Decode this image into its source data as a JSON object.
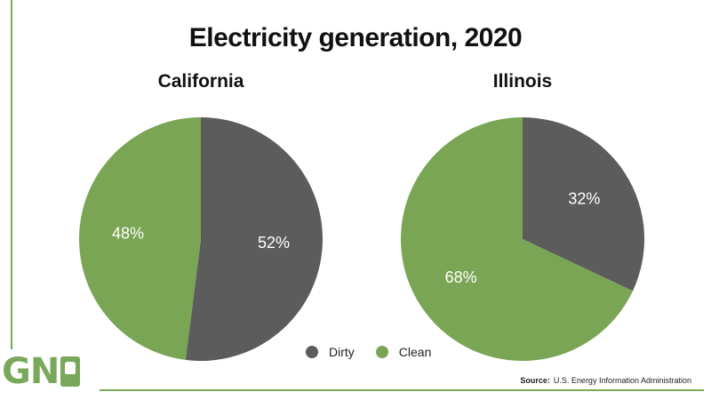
{
  "colors": {
    "dirty": "#5c5c5c",
    "clean": "#79a554",
    "accent": "#7aa85a"
  },
  "title": "Electricity generation, 2020",
  "legend": [
    {
      "label": "Dirty",
      "color": "#5c5c5c"
    },
    {
      "label": "Clean",
      "color": "#79a554"
    }
  ],
  "logo": {
    "text": "GN",
    "mark_icon": "raised-fist-icon"
  },
  "source": {
    "label": "Source:",
    "text": "U.S. Energy Information Administration"
  },
  "chart_data": [
    {
      "type": "pie",
      "title": "California",
      "slices": [
        {
          "label": "Dirty",
          "value": 52,
          "display": "52%"
        },
        {
          "label": "Clean",
          "value": 48,
          "display": "48%"
        }
      ]
    },
    {
      "type": "pie",
      "title": "Illinois",
      "slices": [
        {
          "label": "Dirty",
          "value": 32,
          "display": "32%"
        },
        {
          "label": "Clean",
          "value": 68,
          "display": "68%"
        }
      ]
    }
  ]
}
